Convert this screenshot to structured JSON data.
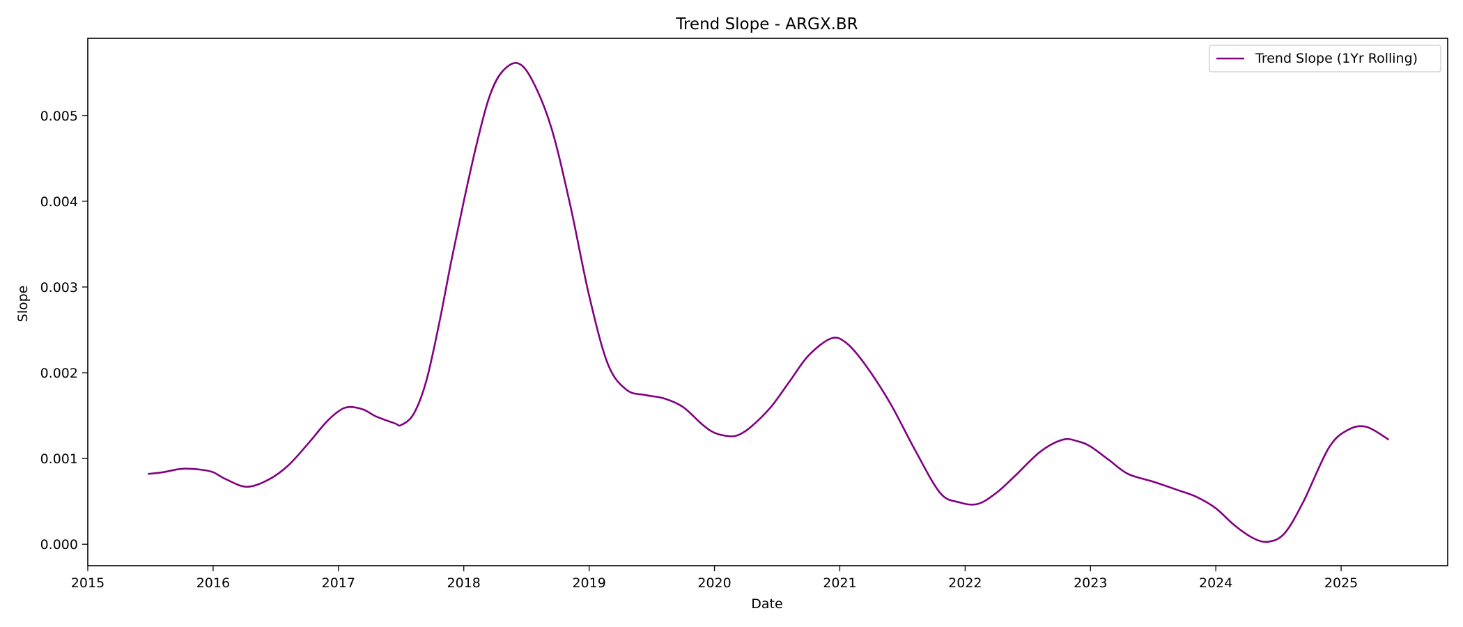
{
  "chart_data": {
    "type": "line",
    "title": "Trend Slope - ARGX.BR",
    "xlabel": "Date",
    "ylabel": "Slope",
    "xlim": [
      2015.0,
      2025.85
    ],
    "ylim": [
      -0.00025,
      0.0059
    ],
    "x_ticks": [
      2015,
      2016,
      2017,
      2018,
      2019,
      2020,
      2021,
      2022,
      2023,
      2024,
      2025
    ],
    "y_ticks": [
      0.0,
      0.001,
      0.002,
      0.003,
      0.004,
      0.005
    ],
    "y_tick_labels": [
      "0.000",
      "0.001",
      "0.002",
      "0.003",
      "0.004",
      "0.005"
    ],
    "grid": false,
    "legend_position": "top-right",
    "series": [
      {
        "name": "Trend Slope (1Yr Rolling)",
        "color": "#800080",
        "x": [
          2015.48,
          2015.6,
          2015.75,
          2015.9,
          2016.0,
          2016.1,
          2016.27,
          2016.45,
          2016.6,
          2016.75,
          2016.9,
          2017.0,
          2017.08,
          2017.2,
          2017.3,
          2017.45,
          2017.5,
          2017.6,
          2017.7,
          2017.8,
          2017.9,
          2018.0,
          2018.1,
          2018.2,
          2018.3,
          2018.43,
          2018.55,
          2018.7,
          2018.85,
          2019.0,
          2019.15,
          2019.3,
          2019.45,
          2019.6,
          2019.75,
          2019.9,
          2020.0,
          2020.12,
          2020.2,
          2020.3,
          2020.45,
          2020.6,
          2020.75,
          2020.93,
          2021.05,
          2021.2,
          2021.4,
          2021.6,
          2021.8,
          2021.95,
          2022.1,
          2022.25,
          2022.4,
          2022.6,
          2022.78,
          2022.9,
          2023.0,
          2023.15,
          2023.3,
          2023.5,
          2023.7,
          2023.85,
          2024.0,
          2024.15,
          2024.3,
          2024.42,
          2024.55,
          2024.7,
          2024.9,
          2025.05,
          2025.2,
          2025.38
        ],
        "y": [
          0.00082,
          0.00084,
          0.00088,
          0.00087,
          0.00084,
          0.00076,
          0.00067,
          0.00076,
          0.00092,
          0.00116,
          0.00142,
          0.00155,
          0.0016,
          0.00157,
          0.00149,
          0.00141,
          0.00139,
          0.00152,
          0.0019,
          0.00255,
          0.0033,
          0.004,
          0.00465,
          0.0052,
          0.0055,
          0.00561,
          0.0054,
          0.00485,
          0.00395,
          0.0029,
          0.0021,
          0.0018,
          0.00174,
          0.0017,
          0.0016,
          0.0014,
          0.0013,
          0.00126,
          0.00128,
          0.00138,
          0.0016,
          0.0019,
          0.0022,
          0.0024,
          0.00235,
          0.0021,
          0.00165,
          0.0011,
          0.0006,
          0.00049,
          0.00047,
          0.0006,
          0.0008,
          0.00108,
          0.00122,
          0.0012,
          0.00114,
          0.00098,
          0.00082,
          0.00073,
          0.00063,
          0.00055,
          0.00042,
          0.00022,
          7e-05,
          3e-05,
          0.00013,
          0.0005,
          0.00112,
          0.00133,
          0.00137,
          0.00122
        ]
      }
    ]
  }
}
